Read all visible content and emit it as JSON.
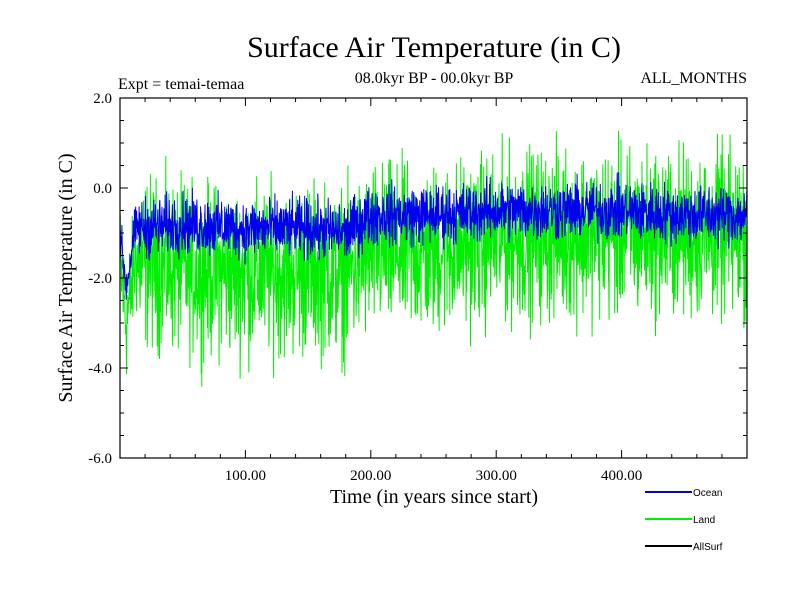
{
  "chart_data": {
    "type": "line",
    "title": "Surface Air Temperature (in C)",
    "experiment_label": "Expt = temai-temaa",
    "period_label": "08.0kyr BP - 00.0kyr BP",
    "months_label": "ALL_MONTHS",
    "xlabel": "Time (in years since start)",
    "ylabel": "Surface Air Temperature (in C)",
    "xlim": [
      0,
      500
    ],
    "ylim": [
      -6.0,
      2.0
    ],
    "x_ticks": [
      {
        "value": 100,
        "label": "100.00"
      },
      {
        "value": 200,
        "label": "200.00"
      },
      {
        "value": 300,
        "label": "300.00"
      },
      {
        "value": 400,
        "label": "400.00"
      }
    ],
    "y_ticks": [
      {
        "value": 2.0,
        "label": "2.0"
      },
      {
        "value": 0.0,
        "label": "0.0"
      },
      {
        "value": -2.0,
        "label": "-2.0"
      },
      {
        "value": -4.0,
        "label": "-4.0"
      },
      {
        "value": -6.0,
        "label": "-6.0"
      }
    ],
    "legend_position": "bottom-right, outside plot",
    "series": [
      {
        "name": "Land",
        "color": "#00ee00",
        "approx_mean": [
          [
            0,
            -1.6
          ],
          [
            5,
            -3.0
          ],
          [
            12,
            -1.6
          ],
          [
            50,
            -1.8
          ],
          [
            100,
            -1.9
          ],
          [
            150,
            -1.8
          ],
          [
            180,
            -1.9
          ],
          [
            200,
            -1.4
          ],
          [
            250,
            -1.4
          ],
          [
            300,
            -1.1
          ],
          [
            350,
            -1.0
          ],
          [
            400,
            -1.0
          ],
          [
            450,
            -1.0
          ],
          [
            500,
            -1.0
          ]
        ],
        "approx_noise_half_range": 1.7
      },
      {
        "name": "Ocean",
        "color": "#0000ee",
        "approx_mean": [
          [
            0,
            -1.0
          ],
          [
            5,
            -2.2
          ],
          [
            12,
            -0.9
          ],
          [
            50,
            -0.8
          ],
          [
            100,
            -0.9
          ],
          [
            150,
            -0.9
          ],
          [
            180,
            -1.0
          ],
          [
            200,
            -0.6
          ],
          [
            250,
            -0.6
          ],
          [
            300,
            -0.5
          ],
          [
            350,
            -0.5
          ],
          [
            400,
            -0.5
          ],
          [
            450,
            -0.6
          ],
          [
            500,
            -0.6
          ]
        ],
        "approx_noise_half_range": 0.6
      },
      {
        "name": "AllSurf",
        "color": "#000000",
        "approx_mean": [],
        "approx_noise_half_range": 0
      }
    ]
  }
}
